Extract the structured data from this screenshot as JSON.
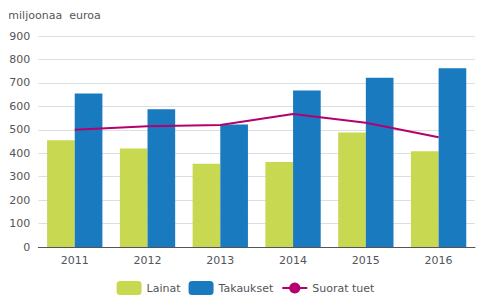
{
  "chart_data": {
    "type": "bar",
    "ylabel": "miljoonaa  euroa",
    "categories": [
      "2011",
      "2012",
      "2013",
      "2014",
      "2015",
      "2016"
    ],
    "series": [
      {
        "name": "Lainat",
        "type": "bar",
        "color": "#c8d850",
        "values": [
          455,
          420,
          355,
          363,
          488,
          408
        ]
      },
      {
        "name": "Takaukset",
        "type": "bar",
        "color": "#1a7abf",
        "values": [
          655,
          588,
          523,
          668,
          722,
          762
        ]
      },
      {
        "name": "Suorat tuet",
        "type": "line",
        "color": "#b5006e",
        "values": [
          500,
          515,
          520,
          567,
          530,
          468
        ]
      }
    ],
    "ylim": [
      0,
      900
    ],
    "yticks": [
      0,
      100,
      200,
      300,
      400,
      500,
      600,
      700,
      800,
      900
    ],
    "grid": true,
    "legend": "bottom"
  }
}
